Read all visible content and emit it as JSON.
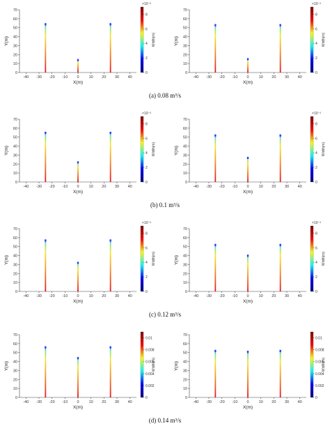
{
  "captions": [
    {
      "text": "(a) 0.08 m³/s"
    },
    {
      "text": "(b) 0.1 m³/s"
    },
    {
      "text": "(c) 0.12 m³/s"
    },
    {
      "text": "(d) 0.14 m³/s"
    }
  ],
  "colormap": [
    "#00007f",
    "#0000ff",
    "#00ffff",
    "#ffff00",
    "#ff0000",
    "#7f0000"
  ],
  "chart_data": [
    {
      "type": "line",
      "xlabel": "X(m)",
      "ylabel": "Y(m)",
      "colorbar_label": "Width(m)",
      "colorbar_exponent": "×10⁻³",
      "colorbar_range": [
        0,
        9
      ],
      "colorbar_ticks": [
        "0",
        "2",
        "4",
        "6",
        "8"
      ],
      "xlim": [
        -45,
        45
      ],
      "ylim": [
        0,
        70
      ],
      "xticks": [
        "-40",
        "-30",
        "-20",
        "-10",
        "0",
        "10",
        "20",
        "30",
        "40"
      ],
      "yticks": [
        "0",
        "10",
        "20",
        "30",
        "40",
        "50",
        "60",
        "70"
      ],
      "series": [
        {
          "x": -25,
          "length": 55
        },
        {
          "x": 0,
          "length": 15
        },
        {
          "x": 25,
          "length": 55
        }
      ]
    },
    {
      "type": "line",
      "xlabel": "X(m)",
      "ylabel": "Y(m)",
      "colorbar_label": "Width(m)",
      "colorbar_exponent": "×10⁻³",
      "colorbar_range": [
        0,
        9
      ],
      "colorbar_ticks": [
        "0",
        "2",
        "4",
        "6",
        "8"
      ],
      "xlim": [
        -45,
        45
      ],
      "ylim": [
        0,
        70
      ],
      "xticks": [
        "-40",
        "-30",
        "-20",
        "-10",
        "0",
        "10",
        "20",
        "30",
        "40"
      ],
      "yticks": [
        "0",
        "10",
        "20",
        "30",
        "40",
        "50",
        "60",
        "70"
      ],
      "series": [
        {
          "x": -25,
          "length": 54
        },
        {
          "x": 0,
          "length": 16
        },
        {
          "x": 25,
          "length": 54
        }
      ]
    },
    {
      "type": "line",
      "xlabel": "X(m)",
      "ylabel": "Y(m)",
      "colorbar_label": "Width(m)",
      "colorbar_exponent": "×10⁻³",
      "colorbar_range": [
        0,
        9
      ],
      "colorbar_ticks": [
        "0",
        "2",
        "4",
        "6",
        "8"
      ],
      "xlim": [
        -45,
        45
      ],
      "ylim": [
        0,
        70
      ],
      "xticks": [
        "-40",
        "-30",
        "-20",
        "-10",
        "0",
        "10",
        "20",
        "30",
        "40"
      ],
      "yticks": [
        "0",
        "10",
        "20",
        "30",
        "40",
        "50",
        "60",
        "70"
      ],
      "series": [
        {
          "x": -25,
          "length": 56
        },
        {
          "x": 0,
          "length": 23
        },
        {
          "x": 25,
          "length": 56
        }
      ]
    },
    {
      "type": "line",
      "xlabel": "X(m)",
      "ylabel": "Y(m)",
      "colorbar_label": "Width(m)",
      "colorbar_exponent": "×10⁻³",
      "colorbar_range": [
        0,
        9
      ],
      "colorbar_ticks": [
        "0",
        "2",
        "4",
        "6",
        "8"
      ],
      "xlim": [
        -45,
        45
      ],
      "ylim": [
        0,
        70
      ],
      "xticks": [
        "-40",
        "-30",
        "-20",
        "-10",
        "0",
        "10",
        "20",
        "30",
        "40"
      ],
      "yticks": [
        "0",
        "10",
        "20",
        "30",
        "40",
        "50",
        "60",
        "70"
      ],
      "series": [
        {
          "x": -25,
          "length": 53
        },
        {
          "x": 0,
          "length": 28
        },
        {
          "x": 25,
          "length": 53
        }
      ]
    },
    {
      "type": "line",
      "xlabel": "X(m)",
      "ylabel": "Y(m)",
      "colorbar_label": "Width(m)",
      "colorbar_exponent": "×10⁻³",
      "colorbar_range": [
        0,
        9
      ],
      "colorbar_ticks": [
        "0",
        "2",
        "4",
        "6",
        "8"
      ],
      "xlim": [
        -45,
        45
      ],
      "ylim": [
        0,
        70
      ],
      "xticks": [
        "-40",
        "-30",
        "-20",
        "-10",
        "0",
        "10",
        "20",
        "30",
        "40"
      ],
      "yticks": [
        "0",
        "10",
        "20",
        "30",
        "40",
        "50",
        "60",
        "70"
      ],
      "series": [
        {
          "x": -25,
          "length": 58
        },
        {
          "x": 0,
          "length": 33
        },
        {
          "x": 25,
          "length": 58
        }
      ]
    },
    {
      "type": "line",
      "xlabel": "X(m)",
      "ylabel": "Y(m)",
      "colorbar_label": "Width(m)",
      "colorbar_exponent": "×10⁻³",
      "colorbar_range": [
        0,
        9
      ],
      "colorbar_ticks": [
        "0",
        "2",
        "4",
        "6",
        "8"
      ],
      "xlim": [
        -45,
        45
      ],
      "ylim": [
        0,
        70
      ],
      "xticks": [
        "-40",
        "-30",
        "-20",
        "-10",
        "0",
        "10",
        "20",
        "30",
        "40"
      ],
      "yticks": [
        "0",
        "10",
        "20",
        "30",
        "40",
        "50",
        "60",
        "70"
      ],
      "series": [
        {
          "x": -25,
          "length": 53
        },
        {
          "x": 0,
          "length": 41
        },
        {
          "x": 25,
          "length": 53
        }
      ]
    },
    {
      "type": "line",
      "xlabel": "X(m)",
      "ylabel": "Y(m)",
      "colorbar_label": "Width(m)",
      "colorbar_exponent": "",
      "colorbar_range": [
        0,
        0.011
      ],
      "colorbar_ticks": [
        "0",
        "0.002",
        "0.004",
        "0.006",
        "0.008",
        "0.01"
      ],
      "xlim": [
        -45,
        45
      ],
      "ylim": [
        0,
        70
      ],
      "xticks": [
        "-40",
        "-30",
        "-20",
        "-10",
        "0",
        "10",
        "20",
        "30",
        "40"
      ],
      "yticks": [
        "0",
        "10",
        "20",
        "30",
        "40",
        "50",
        "60",
        "70"
      ],
      "series": [
        {
          "x": -25,
          "length": 57
        },
        {
          "x": 0,
          "length": 45
        },
        {
          "x": 25,
          "length": 57
        }
      ]
    },
    {
      "type": "line",
      "xlabel": "X(m)",
      "ylabel": "Y(m)",
      "colorbar_label": "Width(m)",
      "colorbar_exponent": "",
      "colorbar_range": [
        0,
        0.011
      ],
      "colorbar_ticks": [
        "0",
        "0.002",
        "0.004",
        "0.006",
        "0.008",
        "0.01"
      ],
      "xlim": [
        -45,
        45
      ],
      "ylim": [
        0,
        70
      ],
      "xticks": [
        "-40",
        "-30",
        "-20",
        "-10",
        "0",
        "10",
        "20",
        "30",
        "40"
      ],
      "yticks": [
        "0",
        "10",
        "20",
        "30",
        "40",
        "50",
        "60",
        "70"
      ],
      "series": [
        {
          "x": -25,
          "length": 53
        },
        {
          "x": 0,
          "length": 52
        },
        {
          "x": 25,
          "length": 53
        }
      ]
    }
  ]
}
